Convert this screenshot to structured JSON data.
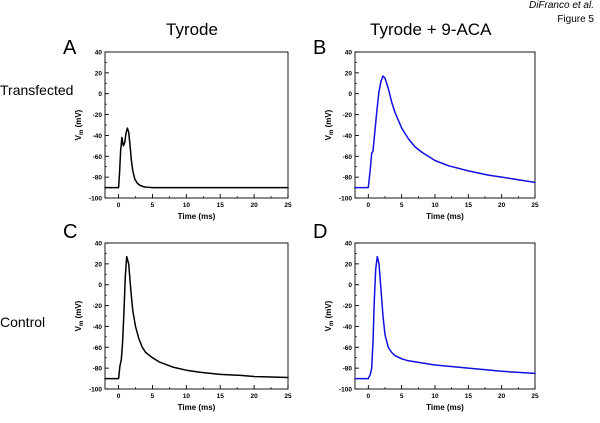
{
  "figure": {
    "credit": "DiFranco et al.",
    "figure_number": "Figure 5",
    "column_titles": [
      "Tyrode",
      "Tyrode + 9-ACA"
    ],
    "row_labels": [
      "Transfected",
      "Control"
    ]
  },
  "colors": {
    "black_trace": "#000000",
    "blue_trace": "#1010e0",
    "axis": "#000000"
  },
  "chart_data": [
    {
      "panel": "A",
      "type": "line",
      "color": "black",
      "title": "",
      "xlabel": "Time (ms)",
      "ylabel_main": "V",
      "ylabel_sub": "m",
      "ylabel_unit": "(mV)",
      "xlim": [
        -2,
        25
      ],
      "ylim": [
        -100,
        40
      ],
      "xticks": [
        0,
        5,
        10,
        15,
        20,
        25
      ],
      "yticks": [
        40,
        20,
        0,
        -20,
        -40,
        -60,
        -80,
        -100
      ],
      "series": [
        {
          "name": "Transfected, Tyrode",
          "x": [
            -2,
            0,
            0.15,
            0.3,
            0.5,
            0.7,
            0.9,
            1.1,
            1.3,
            1.5,
            1.7,
            1.9,
            2.1,
            2.4,
            2.8,
            3.2,
            3.6,
            4.0,
            5,
            7,
            10,
            15,
            20,
            25
          ],
          "y": [
            -90,
            -90,
            -75,
            -55,
            -42,
            -50,
            -47,
            -38,
            -33,
            -37,
            -50,
            -64,
            -74,
            -82,
            -86,
            -88,
            -89,
            -89.5,
            -90,
            -90,
            -90,
            -90,
            -90,
            -90
          ]
        }
      ]
    },
    {
      "panel": "B",
      "type": "line",
      "color": "blue",
      "title": "",
      "xlabel": "Time (ms)",
      "ylabel_main": "V",
      "ylabel_sub": "m",
      "ylabel_unit": "(mV)",
      "xlim": [
        -2,
        25
      ],
      "ylim": [
        -100,
        40
      ],
      "xticks": [
        0,
        5,
        10,
        15,
        20,
        25
      ],
      "yticks": [
        40,
        20,
        0,
        -20,
        -40,
        -60,
        -80,
        -100
      ],
      "series": [
        {
          "name": "Transfected, Tyrode + 9-ACA",
          "x": [
            -2,
            0,
            0.3,
            0.5,
            0.7,
            1.0,
            1.3,
            1.6,
            1.9,
            2.2,
            2.5,
            3.0,
            3.5,
            4,
            5,
            6,
            7,
            8,
            10,
            12,
            15,
            18,
            20,
            22,
            25
          ],
          "y": [
            -90,
            -90,
            -72,
            -57,
            -55,
            -35,
            -15,
            2,
            12,
            17,
            15,
            5,
            -8,
            -18,
            -33,
            -43,
            -51,
            -56,
            -64,
            -69,
            -74,
            -78,
            -80,
            -82,
            -85
          ]
        }
      ]
    },
    {
      "panel": "C",
      "type": "line",
      "color": "black",
      "title": "",
      "xlabel": "Time (ms)",
      "ylabel_main": "V",
      "ylabel_sub": "m",
      "ylabel_unit": "(mV)",
      "xlim": [
        -2,
        25
      ],
      "ylim": [
        -100,
        40
      ],
      "xticks": [
        0,
        5,
        10,
        15,
        20,
        25
      ],
      "yticks": [
        40,
        20,
        0,
        -20,
        -40,
        -60,
        -80,
        -100
      ],
      "series": [
        {
          "name": "Control, Tyrode",
          "x": [
            -2,
            0,
            0.2,
            0.4,
            0.6,
            0.8,
            1.0,
            1.2,
            1.5,
            1.8,
            2.1,
            2.5,
            3,
            3.5,
            4,
            5,
            6,
            8,
            10,
            12,
            15,
            18,
            20,
            25
          ],
          "y": [
            -90,
            -90,
            -78,
            -72,
            -55,
            -25,
            8,
            27,
            20,
            -5,
            -25,
            -40,
            -52,
            -60,
            -65,
            -70,
            -74,
            -79,
            -82,
            -84,
            -86,
            -87,
            -88,
            -89
          ]
        }
      ]
    },
    {
      "panel": "D",
      "type": "line",
      "color": "blue",
      "title": "",
      "xlabel": "Time (ms)",
      "ylabel_main": "V",
      "ylabel_sub": "m",
      "ylabel_unit": "(mV)",
      "xlim": [
        -2,
        25
      ],
      "ylim": [
        -100,
        40
      ],
      "xticks": [
        0,
        5,
        10,
        15,
        20,
        25
      ],
      "yticks": [
        40,
        20,
        0,
        -20,
        -40,
        -60,
        -80,
        -100
      ],
      "series": [
        {
          "name": "Control, Tyrode + 9-ACA",
          "x": [
            -2,
            0,
            0.3,
            0.5,
            0.7,
            0.9,
            1.1,
            1.35,
            1.6,
            1.9,
            2.2,
            2.5,
            3,
            3.5,
            4,
            5,
            6,
            8,
            10,
            15,
            20,
            25
          ],
          "y": [
            -90,
            -90,
            -86,
            -80,
            -55,
            -15,
            15,
            27,
            20,
            -5,
            -30,
            -48,
            -60,
            -65,
            -68,
            -71,
            -73,
            -75,
            -77,
            -80,
            -83,
            -85
          ]
        }
      ]
    }
  ]
}
